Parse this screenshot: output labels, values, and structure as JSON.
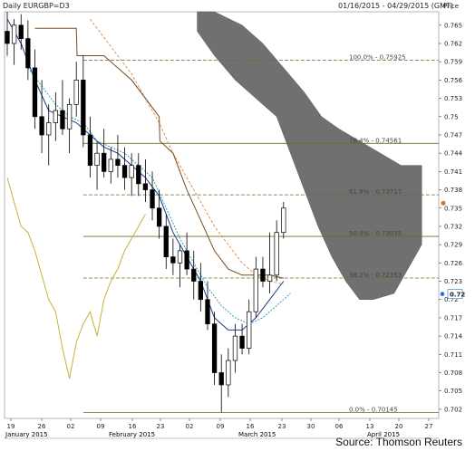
{
  "header": {
    "title": "Daily EURGBP=D3",
    "date_range": "01/16/2015 - 04/29/2015 (GMT)"
  },
  "source": "Source: Thomson Reuters",
  "colors": {
    "cloud": "#707070",
    "fib": "#6b6b2a",
    "ma_blue": "#1f3a8a",
    "ma_teal": "#2aa3b5",
    "ma_brown": "#7a4b1e",
    "ma_orange": "#d98a4a",
    "lagging_yellow": "#c9b23a",
    "last_price": "#c87a2a",
    "current": "#2a6fd6"
  },
  "chart_data": {
    "type": "candlestick",
    "title": "Daily EURGBP=D3",
    "ylabel": "Price",
    "xlabel": "",
    "ylim": [
      0.7005,
      0.7672
    ],
    "grid": false,
    "y_ticks": [
      "0.765",
      "0.762",
      "0.759",
      "0.756",
      "0.753",
      "0.75",
      "0.747",
      "0.744",
      "0.741",
      "0.738",
      "0.735",
      "0.732",
      "0.729",
      "0.726",
      "0.723",
      "0.72",
      "0.717",
      "0.714",
      "0.711",
      "0.708",
      "0.705",
      "0.702"
    ],
    "x_ticks": [
      "19",
      "26",
      "02",
      "09",
      "16",
      "23",
      "02",
      "09",
      "16",
      "23",
      "30",
      "06",
      "13",
      "20",
      "27"
    ],
    "months": [
      "January 2015",
      "February 2015",
      "March 2015",
      "April 2015"
    ],
    "candles": [
      {
        "o": 0.764,
        "h": 0.7672,
        "l": 0.76,
        "c": 0.762
      },
      {
        "o": 0.762,
        "h": 0.766,
        "l": 0.7585,
        "c": 0.765
      },
      {
        "o": 0.765,
        "h": 0.7668,
        "l": 0.761,
        "c": 0.7628
      },
      {
        "o": 0.7628,
        "h": 0.7658,
        "l": 0.756,
        "c": 0.758
      },
      {
        "o": 0.758,
        "h": 0.761,
        "l": 0.748,
        "c": 0.75
      },
      {
        "o": 0.75,
        "h": 0.756,
        "l": 0.744,
        "c": 0.747
      },
      {
        "o": 0.747,
        "h": 0.752,
        "l": 0.742,
        "c": 0.749
      },
      {
        "o": 0.749,
        "h": 0.754,
        "l": 0.746,
        "c": 0.751
      },
      {
        "o": 0.751,
        "h": 0.756,
        "l": 0.747,
        "c": 0.748
      },
      {
        "o": 0.748,
        "h": 0.753,
        "l": 0.744,
        "c": 0.752
      },
      {
        "o": 0.752,
        "h": 0.759,
        "l": 0.75,
        "c": 0.756
      },
      {
        "o": 0.756,
        "h": 0.76,
        "l": 0.745,
        "c": 0.747
      },
      {
        "o": 0.747,
        "h": 0.75,
        "l": 0.74,
        "c": 0.742
      },
      {
        "o": 0.742,
        "h": 0.746,
        "l": 0.738,
        "c": 0.744
      },
      {
        "o": 0.744,
        "h": 0.748,
        "l": 0.74,
        "c": 0.741
      },
      {
        "o": 0.741,
        "h": 0.745,
        "l": 0.739,
        "c": 0.743
      },
      {
        "o": 0.743,
        "h": 0.747,
        "l": 0.74,
        "c": 0.742
      },
      {
        "o": 0.742,
        "h": 0.745,
        "l": 0.738,
        "c": 0.74
      },
      {
        "o": 0.74,
        "h": 0.744,
        "l": 0.737,
        "c": 0.742
      },
      {
        "o": 0.742,
        "h": 0.744,
        "l": 0.737,
        "c": 0.739
      },
      {
        "o": 0.739,
        "h": 0.743,
        "l": 0.736,
        "c": 0.738
      },
      {
        "o": 0.738,
        "h": 0.741,
        "l": 0.733,
        "c": 0.735
      },
      {
        "o": 0.735,
        "h": 0.738,
        "l": 0.73,
        "c": 0.732
      },
      {
        "o": 0.732,
        "h": 0.734,
        "l": 0.725,
        "c": 0.727
      },
      {
        "o": 0.727,
        "h": 0.73,
        "l": 0.724,
        "c": 0.726
      },
      {
        "o": 0.726,
        "h": 0.729,
        "l": 0.722,
        "c": 0.728
      },
      {
        "o": 0.728,
        "h": 0.731,
        "l": 0.724,
        "c": 0.725
      },
      {
        "o": 0.725,
        "h": 0.728,
        "l": 0.72,
        "c": 0.723
      },
      {
        "o": 0.723,
        "h": 0.726,
        "l": 0.718,
        "c": 0.72
      },
      {
        "o": 0.72,
        "h": 0.723,
        "l": 0.715,
        "c": 0.716
      },
      {
        "o": 0.716,
        "h": 0.718,
        "l": 0.706,
        "c": 0.708
      },
      {
        "o": 0.708,
        "h": 0.711,
        "l": 0.7015,
        "c": 0.706
      },
      {
        "o": 0.706,
        "h": 0.712,
        "l": 0.704,
        "c": 0.71
      },
      {
        "o": 0.71,
        "h": 0.716,
        "l": 0.708,
        "c": 0.714
      },
      {
        "o": 0.714,
        "h": 0.716,
        "l": 0.711,
        "c": 0.712
      },
      {
        "o": 0.712,
        "h": 0.72,
        "l": 0.711,
        "c": 0.718
      },
      {
        "o": 0.718,
        "h": 0.727,
        "l": 0.717,
        "c": 0.725
      },
      {
        "o": 0.725,
        "h": 0.727,
        "l": 0.722,
        "c": 0.723
      },
      {
        "o": 0.723,
        "h": 0.731,
        "l": 0.721,
        "c": 0.724
      },
      {
        "o": 0.724,
        "h": 0.733,
        "l": 0.723,
        "c": 0.731
      },
      {
        "o": 0.731,
        "h": 0.736,
        "l": 0.73,
        "c": 0.735
      }
    ],
    "fibonacci": [
      {
        "label": "100.0% - 0.75925",
        "value": 0.75925
      },
      {
        "label": "76.4% - 0.74561",
        "value": 0.74561
      },
      {
        "label": "61.8% - 0.73717",
        "value": 0.73717
      },
      {
        "label": "50.0% - 0.73035",
        "value": 0.73035
      },
      {
        "label": "38.2% - 0.72353",
        "value": 0.72353
      },
      {
        "label": "0.0% - 0.70145",
        "value": 0.70145
      }
    ],
    "last_price": "0.7358",
    "current_price": "0.72",
    "cloud_top": [
      {
        "x": 27.5,
        "y": 0.7672
      },
      {
        "x": 30,
        "y": 0.7672
      },
      {
        "x": 34,
        "y": 0.765
      },
      {
        "x": 37,
        "y": 0.762
      },
      {
        "x": 40,
        "y": 0.758
      },
      {
        "x": 43,
        "y": 0.754
      },
      {
        "x": 45.5,
        "y": 0.75
      },
      {
        "x": 48,
        "y": 0.748
      },
      {
        "x": 51,
        "y": 0.746
      },
      {
        "x": 54,
        "y": 0.744
      },
      {
        "x": 57,
        "y": 0.742
      },
      {
        "x": 60,
        "y": 0.742
      }
    ],
    "cloud_bottom": [
      {
        "x": 27.5,
        "y": 0.764
      },
      {
        "x": 30,
        "y": 0.76
      },
      {
        "x": 33,
        "y": 0.756
      },
      {
        "x": 36,
        "y": 0.753
      },
      {
        "x": 39,
        "y": 0.75
      },
      {
        "x": 41,
        "y": 0.744
      },
      {
        "x": 43,
        "y": 0.738
      },
      {
        "x": 45,
        "y": 0.732
      },
      {
        "x": 47,
        "y": 0.727
      },
      {
        "x": 49,
        "y": 0.723
      },
      {
        "x": 51,
        "y": 0.72
      },
      {
        "x": 53,
        "y": 0.72
      },
      {
        "x": 56,
        "y": 0.721
      },
      {
        "x": 58,
        "y": 0.725
      },
      {
        "x": 60,
        "y": 0.729
      }
    ],
    "lines": {
      "lagging": [
        {
          "x": 0,
          "y": 0.74
        },
        {
          "x": 1,
          "y": 0.736
        },
        {
          "x": 2,
          "y": 0.732
        },
        {
          "x": 3,
          "y": 0.731
        },
        {
          "x": 4,
          "y": 0.728
        },
        {
          "x": 5,
          "y": 0.724
        },
        {
          "x": 6,
          "y": 0.72
        },
        {
          "x": 7,
          "y": 0.718
        },
        {
          "x": 8,
          "y": 0.712
        },
        {
          "x": 9,
          "y": 0.707
        },
        {
          "x": 10,
          "y": 0.713
        },
        {
          "x": 11,
          "y": 0.716
        },
        {
          "x": 12,
          "y": 0.718
        },
        {
          "x": 13,
          "y": 0.714
        },
        {
          "x": 14,
          "y": 0.72
        },
        {
          "x": 15,
          "y": 0.723
        },
        {
          "x": 16,
          "y": 0.725
        },
        {
          "x": 17,
          "y": 0.728
        },
        {
          "x": 18,
          "y": 0.73
        },
        {
          "x": 19,
          "y": 0.732
        },
        {
          "x": 20,
          "y": 0.734
        }
      ],
      "ma_blue": [
        {
          "x": 0,
          "y": 0.766
        },
        {
          "x": 2,
          "y": 0.762
        },
        {
          "x": 4,
          "y": 0.756
        },
        {
          "x": 6,
          "y": 0.751
        },
        {
          "x": 8,
          "y": 0.75
        },
        {
          "x": 10,
          "y": 0.749
        },
        {
          "x": 12,
          "y": 0.747
        },
        {
          "x": 14,
          "y": 0.745
        },
        {
          "x": 16,
          "y": 0.744
        },
        {
          "x": 18,
          "y": 0.742
        },
        {
          "x": 20,
          "y": 0.74
        },
        {
          "x": 22,
          "y": 0.737
        },
        {
          "x": 24,
          "y": 0.731
        },
        {
          "x": 26,
          "y": 0.727
        },
        {
          "x": 28,
          "y": 0.723
        },
        {
          "x": 30,
          "y": 0.717
        },
        {
          "x": 32,
          "y": 0.715
        },
        {
          "x": 34,
          "y": 0.715
        },
        {
          "x": 36,
          "y": 0.717
        },
        {
          "x": 38,
          "y": 0.72
        },
        {
          "x": 40,
          "y": 0.723
        }
      ],
      "ma_teal": [
        {
          "x": 3,
          "y": 0.758
        },
        {
          "x": 5,
          "y": 0.755
        },
        {
          "x": 7,
          "y": 0.752
        },
        {
          "x": 9,
          "y": 0.75
        },
        {
          "x": 11,
          "y": 0.749
        },
        {
          "x": 13,
          "y": 0.746
        },
        {
          "x": 15,
          "y": 0.745
        },
        {
          "x": 17,
          "y": 0.744
        },
        {
          "x": 19,
          "y": 0.742
        },
        {
          "x": 21,
          "y": 0.74
        },
        {
          "x": 23,
          "y": 0.735
        },
        {
          "x": 25,
          "y": 0.73
        },
        {
          "x": 27,
          "y": 0.726
        },
        {
          "x": 29,
          "y": 0.722
        },
        {
          "x": 31,
          "y": 0.719
        },
        {
          "x": 33,
          "y": 0.717
        },
        {
          "x": 35,
          "y": 0.716
        },
        {
          "x": 37,
          "y": 0.717
        },
        {
          "x": 39,
          "y": 0.719
        },
        {
          "x": 41,
          "y": 0.721
        }
      ],
      "ma_orange": [
        {
          "x": 12,
          "y": 0.766
        },
        {
          "x": 14,
          "y": 0.763
        },
        {
          "x": 16,
          "y": 0.76
        },
        {
          "x": 18,
          "y": 0.757
        },
        {
          "x": 20,
          "y": 0.753
        },
        {
          "x": 22,
          "y": 0.749
        },
        {
          "x": 24,
          "y": 0.744
        },
        {
          "x": 26,
          "y": 0.74
        },
        {
          "x": 28,
          "y": 0.736
        },
        {
          "x": 30,
          "y": 0.732
        },
        {
          "x": 32,
          "y": 0.729
        },
        {
          "x": 34,
          "y": 0.726
        },
        {
          "x": 36,
          "y": 0.724
        },
        {
          "x": 38,
          "y": 0.723
        },
        {
          "x": 40,
          "y": 0.7225
        }
      ],
      "ma_brown": [
        {
          "x": 4,
          "y": 0.7645
        },
        {
          "x": 10,
          "y": 0.7645
        },
        {
          "x": 10.1,
          "y": 0.76
        },
        {
          "x": 14,
          "y": 0.76
        },
        {
          "x": 18,
          "y": 0.756
        },
        {
          "x": 22,
          "y": 0.75
        },
        {
          "x": 22.1,
          "y": 0.746
        },
        {
          "x": 24,
          "y": 0.744
        },
        {
          "x": 26,
          "y": 0.738
        },
        {
          "x": 28,
          "y": 0.733
        },
        {
          "x": 30,
          "y": 0.728
        },
        {
          "x": 32,
          "y": 0.725
        },
        {
          "x": 34,
          "y": 0.724
        },
        {
          "x": 36,
          "y": 0.724
        },
        {
          "x": 38,
          "y": 0.724
        },
        {
          "x": 40,
          "y": 0.7235
        }
      ]
    }
  }
}
